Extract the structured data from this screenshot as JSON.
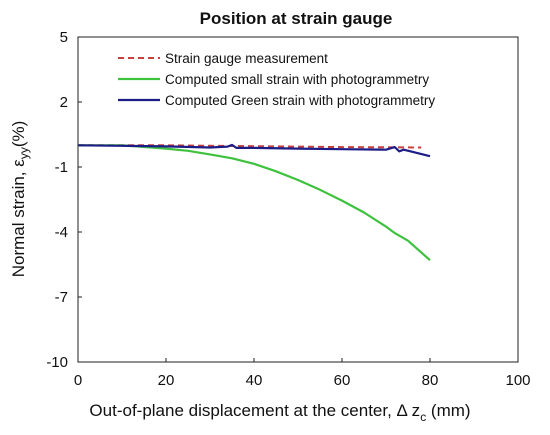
{
  "chart_data": {
    "type": "line",
    "title": "Position at strain gauge",
    "xlabel": "Out-of-plane displacement at the center, Δ z",
    "xlabel_sub": "c",
    "xlabel_unit": " (mm)",
    "ylabel": "Normal strain, ε",
    "ylabel_sub": "yy",
    "ylabel_unit": "(%)",
    "xlim": [
      0,
      100
    ],
    "ylim": [
      -10,
      5
    ],
    "xticks": [
      0,
      20,
      40,
      60,
      80,
      100
    ],
    "yticks": [
      5,
      2,
      -1,
      -4,
      -7,
      -10
    ],
    "grid": false,
    "legend_position": "top-left",
    "series": [
      {
        "name": "Strain gauge measurement",
        "color": "#c8413f",
        "style": "dashed",
        "x": [
          0,
          10,
          20,
          30,
          40,
          50,
          60,
          70,
          78
        ],
        "y": [
          0.0,
          0.0,
          0.0,
          -0.02,
          -0.04,
          -0.06,
          -0.08,
          -0.09,
          -0.1
        ]
      },
      {
        "name": "Computed small strain with photogrammetry",
        "color": "#3ec23e",
        "style": "solid",
        "x": [
          0,
          10,
          20,
          25,
          30,
          35,
          40,
          45,
          50,
          55,
          60,
          65,
          70,
          72,
          75,
          80
        ],
        "y": [
          0.0,
          0.0,
          -0.15,
          -0.25,
          -0.42,
          -0.6,
          -0.85,
          -1.2,
          -1.6,
          -2.05,
          -2.55,
          -3.1,
          -3.75,
          -4.05,
          -4.4,
          -5.3
        ]
      },
      {
        "name": "Computed Green strain with photogrammetry",
        "color": "#1c1d87",
        "style": "solid",
        "x": [
          0,
          10,
          20,
          30,
          34,
          35,
          36,
          40,
          50,
          60,
          70,
          72,
          73,
          74,
          76,
          80
        ],
        "y": [
          0.0,
          -0.02,
          -0.05,
          -0.1,
          -0.06,
          0.02,
          -0.12,
          -0.12,
          -0.15,
          -0.18,
          -0.2,
          -0.08,
          -0.28,
          -0.2,
          -0.3,
          -0.5
        ]
      }
    ]
  }
}
